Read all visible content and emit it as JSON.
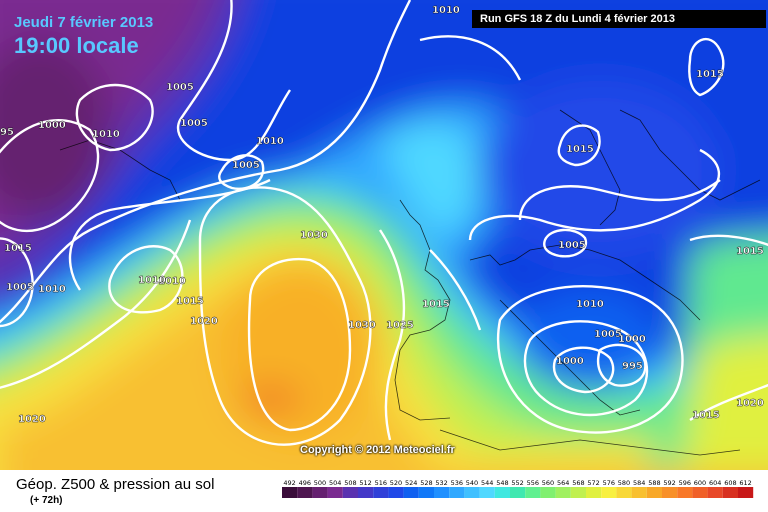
{
  "header": {
    "date": "Jeudi 7 février 2013",
    "time": "19:00 locale",
    "run": "Run GFS 18 Z du Lundi 4 février 2013"
  },
  "copyright": "Copyright © 2012 Meteociel.fr",
  "footer": {
    "title": "Géop. Z500 & pression au sol",
    "subtitle": "(+ 72h)"
  },
  "legend": {
    "values": [
      "492",
      "496",
      "500",
      "504",
      "508",
      "512",
      "516",
      "520",
      "524",
      "528",
      "532",
      "536",
      "540",
      "544",
      "548",
      "552",
      "556",
      "560",
      "564",
      "568",
      "572",
      "576",
      "580",
      "584",
      "588",
      "592",
      "596",
      "600",
      "604",
      "608",
      "612"
    ],
    "colors": [
      "#3a0d3a",
      "#4e1650",
      "#652070",
      "#7a2a90",
      "#5a32b0",
      "#4438c8",
      "#3040d8",
      "#2048e8",
      "#1060f0",
      "#1078f8",
      "#2090ff",
      "#30a8ff",
      "#40c0ff",
      "#50d8ff",
      "#40e8e0",
      "#40e8b0",
      "#60f090",
      "#80f070",
      "#a0f060",
      "#c0f050",
      "#e0f040",
      "#f8f040",
      "#f8d838",
      "#f8c030",
      "#f8a828",
      "#f89028",
      "#f87828",
      "#f06028",
      "#e84828",
      "#d83020",
      "#c81818"
    ]
  },
  "isobars": [
    "1010",
    "1005",
    "1000",
    "1005",
    "1010",
    "1015",
    "1010",
    "1005",
    "1015",
    "1005",
    "1010",
    "1010",
    "1015",
    "1020",
    "1030",
    "1030",
    "1025",
    "1015",
    "1020",
    "1010",
    "1015",
    "1005",
    "1015",
    "1010",
    "1005",
    "1000",
    "1000",
    "995",
    "1015",
    "1020",
    "95"
  ]
}
